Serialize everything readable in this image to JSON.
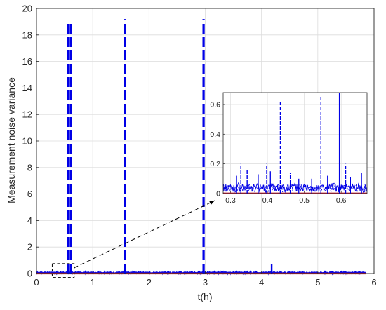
{
  "chart_data": {
    "type": "line",
    "xlabel": "t(h)",
    "ylabel": "Measurement noise variance",
    "xlim": [
      0,
      6
    ],
    "ylim": [
      0,
      20
    ],
    "x_ticks": [
      "0",
      "1",
      "2",
      "3",
      "4",
      "5",
      "6"
    ],
    "y_ticks": [
      "0",
      "2",
      "4",
      "6",
      "8",
      "10",
      "12",
      "14",
      "16",
      "18",
      "20"
    ],
    "grid": true,
    "x_range_of_data": [
      0,
      5.85
    ],
    "spikes": [
      {
        "x": 0.56,
        "y": 19.0,
        "style": "dashed"
      },
      {
        "x": 0.61,
        "y": 19.1,
        "style": "dashed"
      },
      {
        "x": 1.57,
        "y": 19.2,
        "style": "dashed"
      },
      {
        "x": 2.97,
        "y": 19.2,
        "style": "dashed"
      },
      {
        "x": 4.18,
        "y": 0.7,
        "style": "solid"
      }
    ],
    "baseline_noise_level": 0.06,
    "reference_line_y": 0.0,
    "highlight_box": {
      "x": [
        0.28,
        0.67
      ],
      "y": [
        -0.3,
        0.75
      ]
    },
    "inset": {
      "xlim": [
        0.28,
        0.67
      ],
      "ylim": [
        0,
        0.68
      ],
      "x_ticks": [
        "0.3",
        "0.4",
        "0.5",
        "0.6"
      ],
      "y_ticks": [
        "0",
        "0.2",
        "0.4",
        "0.6"
      ],
      "spikes": [
        {
          "x": 0.316,
          "y": 0.12,
          "style": "solid"
        },
        {
          "x": 0.328,
          "y": 0.2,
          "style": "dashed"
        },
        {
          "x": 0.345,
          "y": 0.16,
          "style": "dashed"
        },
        {
          "x": 0.375,
          "y": 0.13,
          "style": "solid"
        },
        {
          "x": 0.398,
          "y": 0.2,
          "style": "dashed"
        },
        {
          "x": 0.408,
          "y": 0.15,
          "style": "solid"
        },
        {
          "x": 0.435,
          "y": 0.62,
          "style": "dashed"
        },
        {
          "x": 0.462,
          "y": 0.14,
          "style": "dashed"
        },
        {
          "x": 0.485,
          "y": 0.1,
          "style": "solid"
        },
        {
          "x": 0.52,
          "y": 0.1,
          "style": "solid"
        },
        {
          "x": 0.545,
          "y": 0.66,
          "style": "dashed"
        },
        {
          "x": 0.563,
          "y": 0.12,
          "style": "solid"
        },
        {
          "x": 0.595,
          "y": 0.68,
          "style": "solid"
        },
        {
          "x": 0.612,
          "y": 0.2,
          "style": "dashed"
        },
        {
          "x": 0.625,
          "y": 0.11,
          "style": "solid"
        },
        {
          "x": 0.655,
          "y": 0.14,
          "style": "solid"
        }
      ],
      "baseline_noise_level": 0.04
    },
    "colors": {
      "series": "#0000e6",
      "reference": "#c0203a",
      "grid": "#dcdcdc",
      "axis": "#262626",
      "arrow": "#000000"
    }
  }
}
